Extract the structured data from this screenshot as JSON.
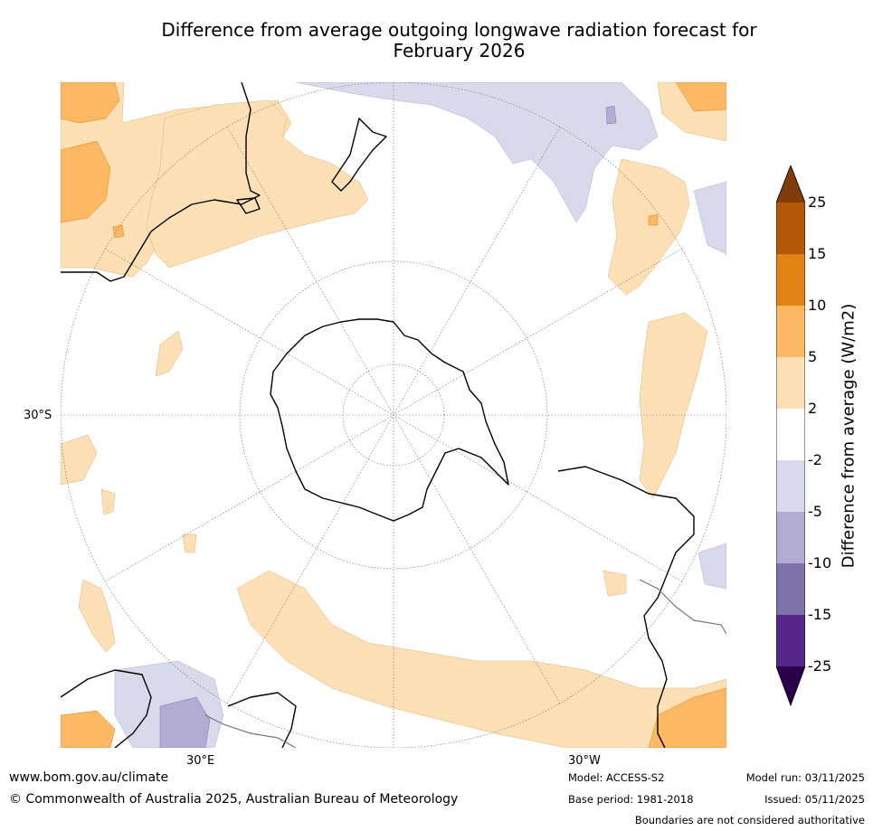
{
  "title_line1": "Difference from average outgoing longwave radiation forecast for",
  "title_line2": "February 2026",
  "map": {
    "lat_label_left": "30°S",
    "lon_label_1": "30°E",
    "lon_label_2": "30°W"
  },
  "colorbar": {
    "title": "Difference from average (W/m2)",
    "ticks": [
      "25",
      "15",
      "10",
      "5",
      "2",
      "-2",
      "-5",
      "-10",
      "-15",
      "-25"
    ],
    "colors": {
      "above_max": "#7f3b08",
      "c_15_25": "#b35806",
      "c_10_15": "#e08214",
      "c_5_10": "#fdb863",
      "c_2_5": "#fee0b6",
      "c_neutral": "#ffffff",
      "c_m5_m2": "#d8daeb",
      "c_m10_m5": "#b2abd2",
      "c_m15_m10": "#8073ac",
      "c_m25_m15": "#542788",
      "below_min": "#2d004b"
    }
  },
  "footer": {
    "website": "www.bom.gov.au/climate",
    "copyright": "© Commonwealth of Australia 2025, Australian Bureau of Meteorology",
    "model": "Model: ACCESS-S2",
    "base_period": "Base period: 1981-2018",
    "model_run": "Model run: 03/11/2025",
    "issued": "Issued: 05/11/2025",
    "disclaimer": "Boundaries are not considered authoritative"
  }
}
